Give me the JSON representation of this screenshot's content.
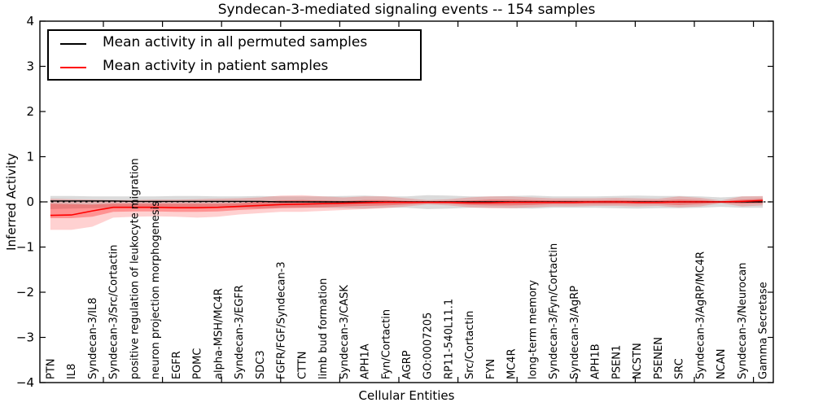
{
  "figure": {
    "title": "Syndecan-3-mediated signaling events -- 154 samples",
    "xlabel": "Cellular Entities",
    "ylabel": "Inferred Activity"
  },
  "legend": {
    "entries": [
      {
        "label": "Mean activity in all permuted samples",
        "color": "#000000"
      },
      {
        "label": "Mean activity in patient samples",
        "color": "#ff0000"
      }
    ]
  },
  "chart_data": {
    "type": "line",
    "title": "Syndecan-3-mediated signaling events -- 154 samples",
    "xlabel": "Cellular Entities",
    "ylabel": "Inferred Activity",
    "ylim": [
      -4,
      4
    ],
    "yticks": [
      4,
      3,
      2,
      1,
      0,
      -1,
      -2,
      -3,
      -4
    ],
    "ytick_labels": [
      "4",
      "3",
      "2",
      "1",
      "0",
      "−1",
      "−2",
      "−3",
      "−4"
    ],
    "grid": false,
    "legend_position": "upper left",
    "zero_line": {
      "y": 0,
      "style": "dashed",
      "color": "#000000"
    },
    "categories": [
      "PTN",
      "IL8",
      "Syndecan-3/IL8",
      "Syndecan-3/Src/Cortactin",
      "positive regulation of leukocyte migration",
      "neuron projection morphogenesis",
      "EGFR",
      "POMC",
      "alpha-MSH/MC4R",
      "Syndecan-3/EGFR",
      "SDC3",
      "FGFR/FGF/Syndecan-3",
      "CTTN",
      "limb bud formation",
      "Syndecan-3/CASK",
      "APH1A",
      "Fyn/Cortactin",
      "AGRP",
      "GO:0007205",
      "RP11-540L11.1",
      "Src/Cortactin",
      "FYN",
      "MC4R",
      "long-term memory",
      "Syndecan-3/Fyn/Cortactin",
      "Syndecan-3/AgRP",
      "APH1B",
      "PSEN1",
      "NCSTN",
      "PSENEN",
      "SRC",
      "Syndecan-3/AgRP/MC4R",
      "NCAN",
      "Syndecan-3/Neurocan",
      "Gamma Secretase"
    ],
    "series": [
      {
        "name": "Mean activity in all permuted samples",
        "color": "#000000",
        "band_color": "rgba(110,110,110,0.25)",
        "values": [
          0.02,
          0.02,
          0.02,
          0.02,
          0.01,
          0.01,
          0.01,
          0.01,
          0.01,
          0.01,
          0.01,
          0.0,
          0.0,
          0.0,
          0.0,
          0.0,
          0.0,
          0.0,
          0.0,
          0.0,
          0.0,
          0.0,
          0.0,
          0.0,
          0.0,
          0.0,
          0.0,
          0.0,
          0.0,
          0.0,
          0.0,
          0.0,
          0.0,
          0.0,
          0.0
        ],
        "band_upper": [
          0.13,
          0.13,
          0.12,
          0.12,
          0.12,
          0.12,
          0.13,
          0.13,
          0.12,
          0.12,
          0.13,
          0.12,
          0.12,
          0.12,
          0.13,
          0.14,
          0.12,
          0.12,
          0.15,
          0.14,
          0.12,
          0.12,
          0.13,
          0.14,
          0.12,
          0.12,
          0.12,
          0.13,
          0.14,
          0.13,
          0.13,
          0.12,
          0.1,
          0.12,
          0.12
        ],
        "band_lower": [
          -0.16,
          -0.15,
          -0.14,
          -0.13,
          -0.13,
          -0.13,
          -0.14,
          -0.14,
          -0.13,
          -0.13,
          -0.14,
          -0.13,
          -0.13,
          -0.13,
          -0.14,
          -0.15,
          -0.13,
          -0.13,
          -0.16,
          -0.15,
          -0.13,
          -0.13,
          -0.14,
          -0.15,
          -0.13,
          -0.13,
          -0.13,
          -0.14,
          -0.15,
          -0.14,
          -0.14,
          -0.13,
          -0.11,
          -0.13,
          -0.13
        ]
      },
      {
        "name": "Mean activity in patient samples",
        "color": "#ff0000",
        "band_color": "rgba(255,0,0,0.18)",
        "band_inner_color": "rgba(255,0,0,0.30)",
        "values": [
          -0.3,
          -0.29,
          -0.2,
          -0.12,
          -0.12,
          -0.12,
          -0.13,
          -0.13,
          -0.12,
          -0.1,
          -0.08,
          -0.06,
          -0.05,
          -0.04,
          -0.03,
          -0.02,
          -0.01,
          -0.01,
          -0.01,
          -0.01,
          -0.02,
          -0.02,
          -0.01,
          -0.01,
          -0.01,
          -0.01,
          0.0,
          0.0,
          -0.01,
          -0.01,
          0.0,
          0.0,
          0.0,
          0.01,
          0.03
        ],
        "band_upper": [
          0.07,
          0.06,
          0.05,
          0.04,
          0.04,
          0.05,
          0.05,
          0.06,
          0.07,
          0.08,
          0.1,
          0.14,
          0.15,
          0.12,
          0.1,
          0.12,
          0.12,
          0.08,
          0.04,
          0.06,
          0.1,
          0.12,
          0.12,
          0.1,
          0.08,
          0.08,
          0.08,
          0.09,
          0.08,
          0.07,
          0.12,
          0.09,
          0.03,
          0.12,
          0.13
        ],
        "band_lower": [
          -0.62,
          -0.62,
          -0.55,
          -0.35,
          -0.33,
          -0.32,
          -0.33,
          -0.35,
          -0.33,
          -0.28,
          -0.25,
          -0.22,
          -0.22,
          -0.2,
          -0.18,
          -0.16,
          -0.14,
          -0.1,
          -0.06,
          -0.08,
          -0.12,
          -0.14,
          -0.14,
          -0.12,
          -0.1,
          -0.1,
          -0.09,
          -0.09,
          -0.1,
          -0.09,
          -0.12,
          -0.1,
          -0.03,
          -0.1,
          -0.08
        ],
        "band_inner_upper": [
          -0.04,
          -0.05,
          -0.06,
          -0.04,
          -0.04,
          -0.04,
          -0.04,
          -0.04,
          -0.04,
          -0.03,
          0.0,
          0.03,
          0.04,
          0.03,
          0.02,
          0.04,
          0.04,
          0.02,
          0.01,
          0.02,
          0.03,
          0.05,
          0.05,
          0.04,
          0.03,
          0.03,
          0.03,
          0.04,
          0.03,
          0.03,
          0.05,
          0.04,
          0.01,
          0.05,
          0.07
        ],
        "band_inner_lower": [
          -0.36,
          -0.36,
          -0.33,
          -0.22,
          -0.21,
          -0.21,
          -0.22,
          -0.22,
          -0.21,
          -0.18,
          -0.16,
          -0.14,
          -0.13,
          -0.12,
          -0.1,
          -0.09,
          -0.08,
          -0.06,
          -0.03,
          -0.04,
          -0.07,
          -0.08,
          -0.08,
          -0.07,
          -0.05,
          -0.05,
          -0.05,
          -0.05,
          -0.05,
          -0.05,
          -0.07,
          -0.05,
          -0.02,
          -0.04,
          -0.03
        ]
      }
    ]
  }
}
